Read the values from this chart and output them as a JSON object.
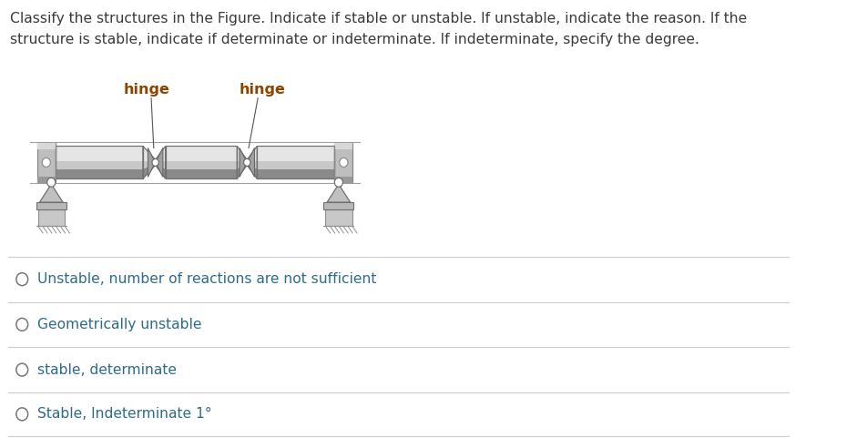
{
  "title_text": "Classify the structures in the Figure. Indicate if stable or unstable. If unstable, indicate the reason. If the\nstructure is stable, indicate if determinate or indeterminate. If indeterminate, specify the degree.",
  "title_color": "#3a3a3a",
  "title_fontsize": 11.2,
  "hinge_label_color": "#8B4500",
  "hinge_label_fontsize": 11.5,
  "options": [
    "Unstable, number of reactions are not sufficient",
    "Geometrically unstable",
    "stable, determinate",
    "Stable, Indeterminate 1°"
  ],
  "option_text_color": "#2E6B8A",
  "option_fontsize": 11.2,
  "separator_color": "#CCCCCC",
  "background_color": "#FFFFFF",
  "beam_fill_light": "#D8D8D8",
  "beam_fill_mid": "#B8B8B8",
  "beam_fill_dark": "#888888",
  "beam_edge": "#707070",
  "hinge_color": "#999999",
  "support_fill": "#C0C0C0",
  "support_edge": "#707070",
  "wall_fill": "#C8C8C8",
  "wall_edge": "#888888",
  "ground_fill": "#D0D0D0",
  "ground_edge": "#909090"
}
